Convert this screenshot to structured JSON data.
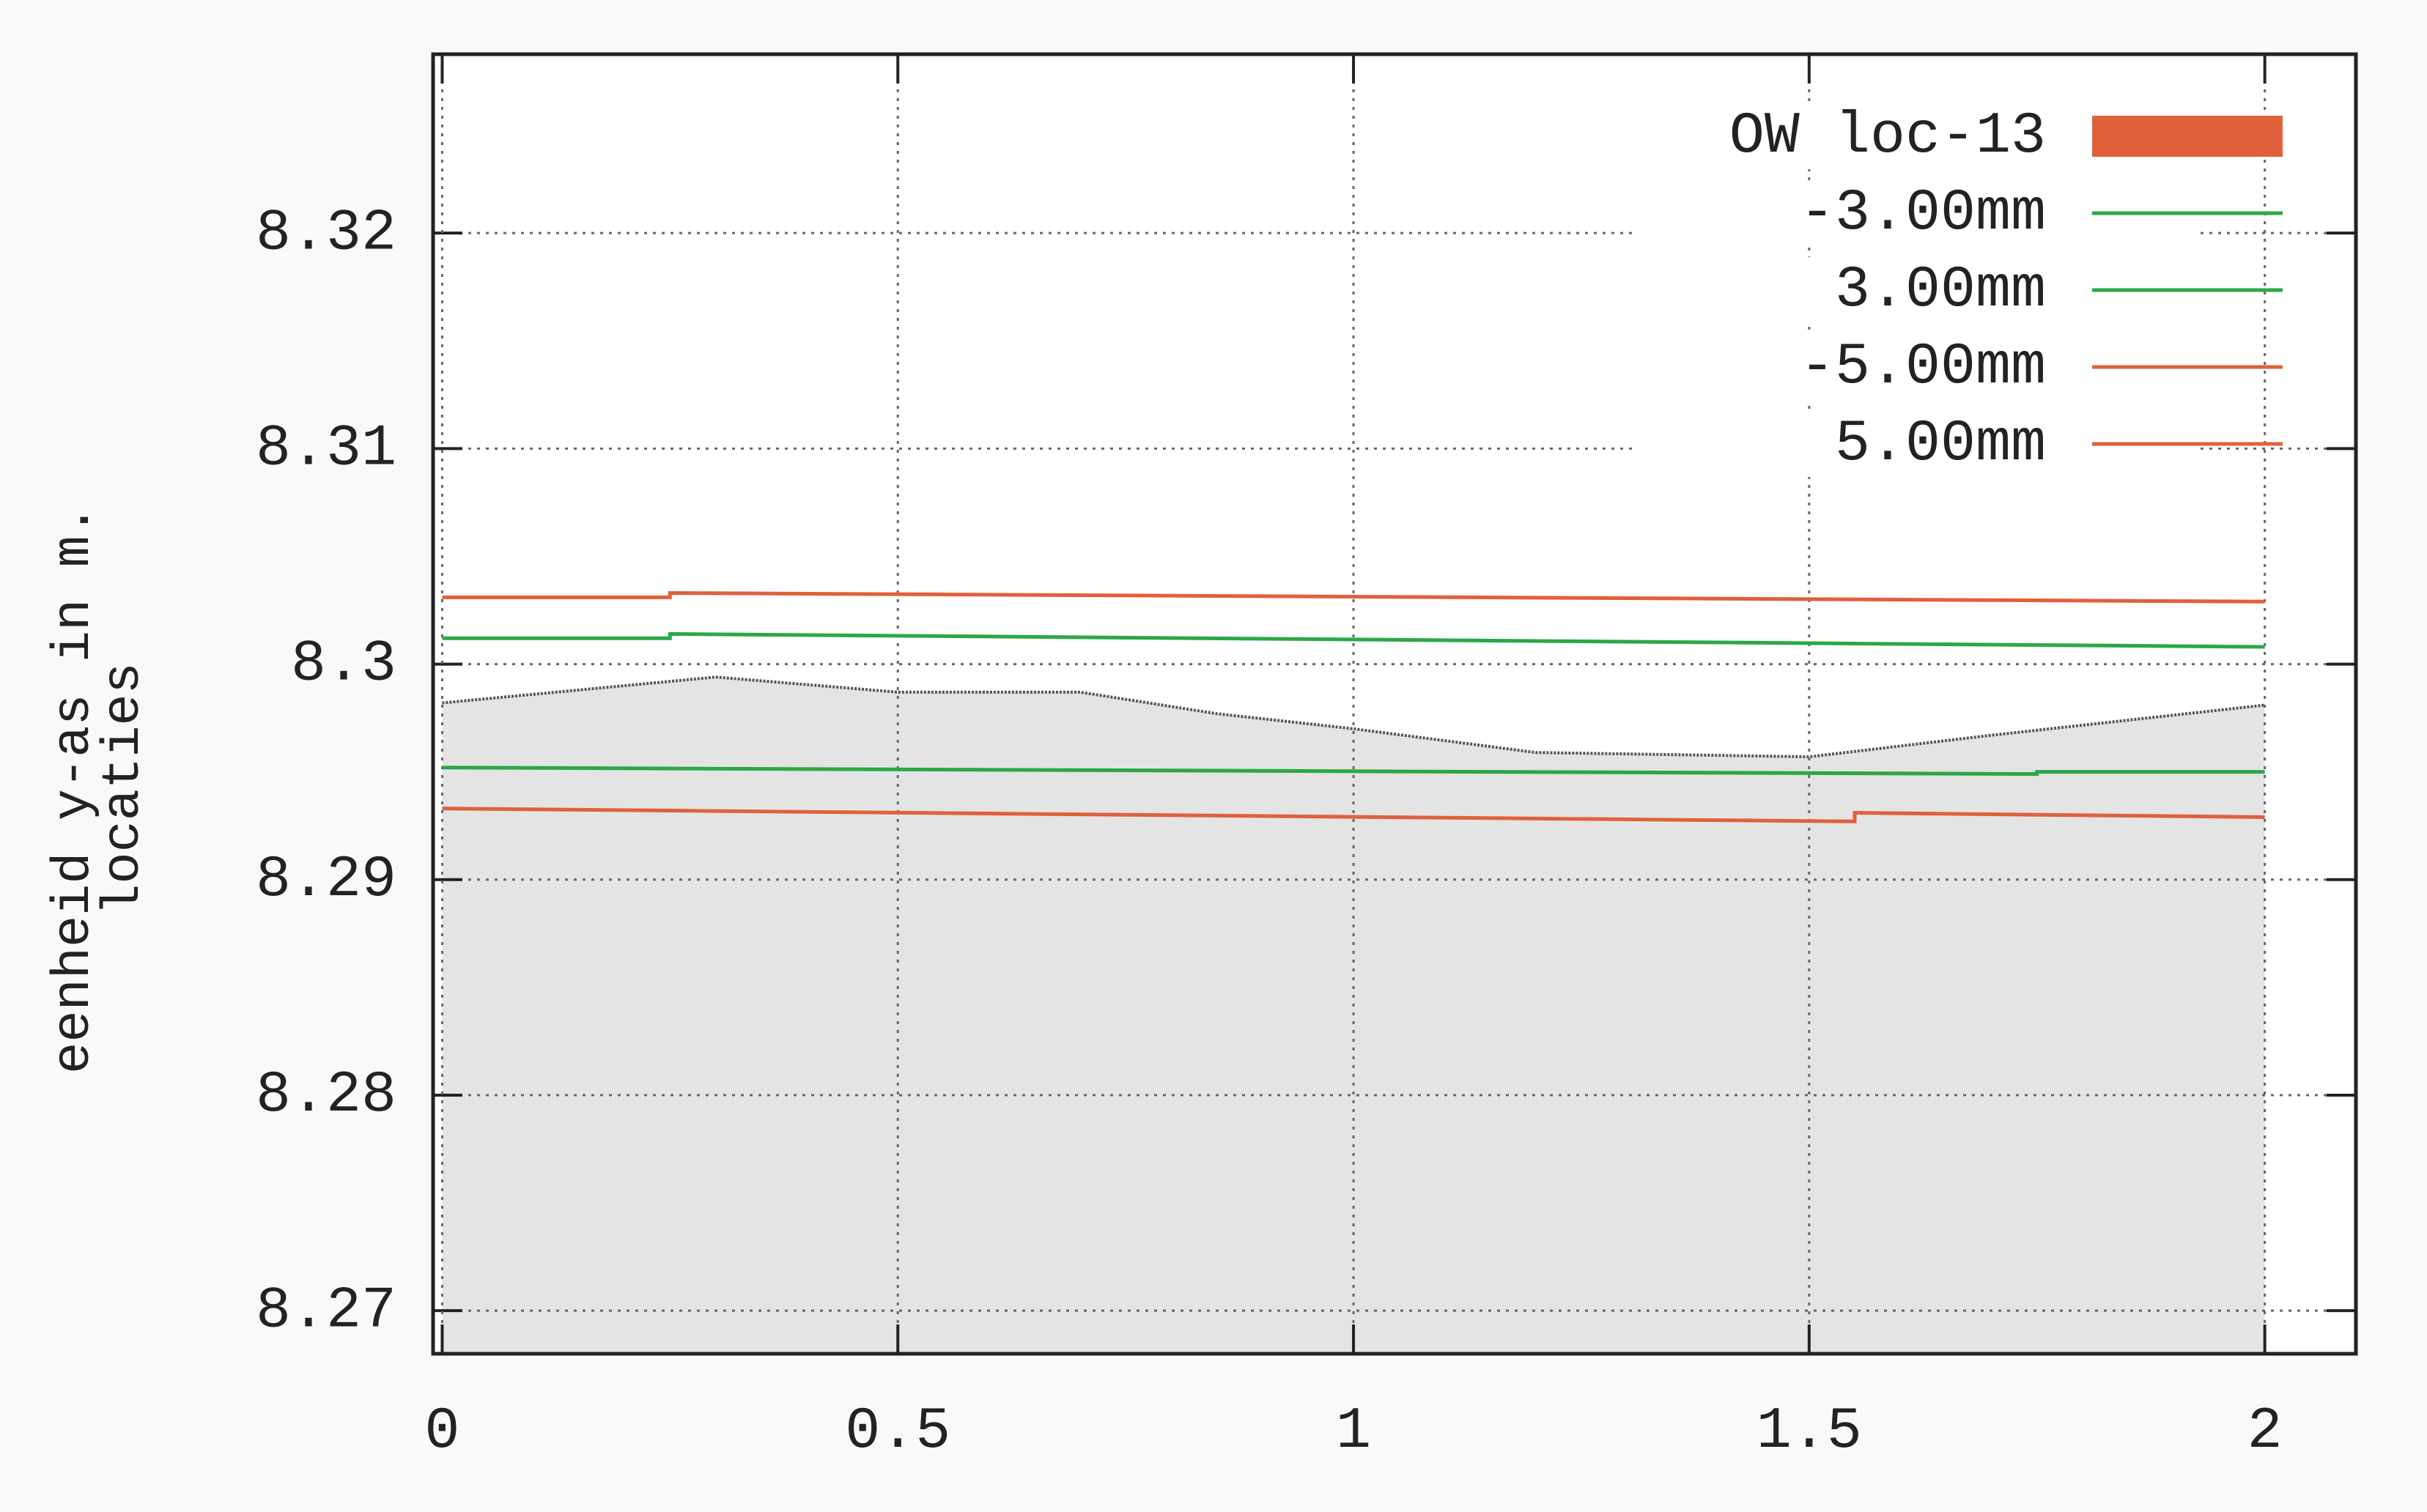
{
  "chart_data": {
    "type": "line",
    "ylabel": [
      "eenheid y-as in m.",
      "locaties"
    ],
    "xlim": [
      -0.01,
      2.1
    ],
    "ylim": [
      8.268,
      8.3283
    ],
    "xticks": [
      0,
      0.5,
      1,
      1.5,
      2
    ],
    "yticks": [
      8.27,
      8.28,
      8.29,
      8.3,
      8.31,
      8.32
    ],
    "grid": true,
    "legend": "upper right",
    "series": [
      {
        "name": "OW loc-13",
        "kind": "area",
        "color": "#e4e4e4",
        "line_color": "#555555",
        "legend_color": "#e0603c",
        "x": [
          0,
          0.3,
          0.5,
          0.7,
          0.85,
          1.0,
          1.2,
          1.5,
          1.7,
          2.0
        ],
        "values": [
          8.2982,
          8.2994,
          8.2987,
          8.2987,
          8.2977,
          8.297,
          8.2959,
          8.2957,
          8.2967,
          8.2981
        ]
      },
      {
        "name": "-3.00mm",
        "kind": "line",
        "color": "#2aa848",
        "x": [
          0,
          1.75,
          1.75,
          2.0
        ],
        "values": [
          8.2952,
          8.2949,
          8.295,
          8.295
        ]
      },
      {
        "name": "3.00mm",
        "kind": "line",
        "color": "#2aa848",
        "x": [
          0,
          0.25,
          0.25,
          2.0
        ],
        "values": [
          8.3012,
          8.3012,
          8.3014,
          8.3008
        ]
      },
      {
        "name": "-5.00mm",
        "kind": "line",
        "color": "#e0603c",
        "x": [
          0,
          1.55,
          1.55,
          2.0
        ],
        "values": [
          8.2933,
          8.2927,
          8.2931,
          8.2929
        ]
      },
      {
        "name": "5.00mm",
        "kind": "line",
        "color": "#e0603c",
        "x": [
          0,
          0.25,
          0.25,
          2.0
        ],
        "values": [
          8.3031,
          8.3031,
          8.3033,
          8.3029
        ]
      }
    ]
  }
}
